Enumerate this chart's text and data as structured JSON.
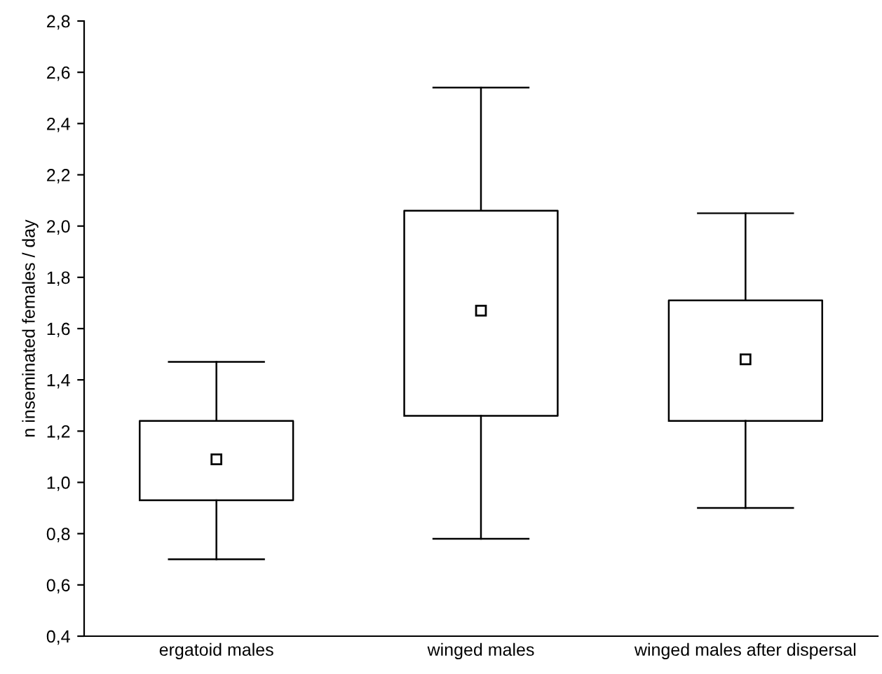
{
  "chart_data": {
    "type": "box",
    "ylabel": "n inseminated females / day",
    "categories": [
      "ergatoid males",
      "winged males",
      "winged males after dispersal"
    ],
    "boxes": [
      {
        "low": 0.7,
        "q1": 0.93,
        "q3": 1.24,
        "high": 1.47,
        "mean": 1.09
      },
      {
        "low": 0.78,
        "q1": 1.26,
        "q3": 2.06,
        "high": 2.54,
        "mean": 1.67
      },
      {
        "low": 0.9,
        "q1": 1.24,
        "q3": 1.71,
        "high": 2.05,
        "mean": 1.48
      }
    ],
    "color": "#000000",
    "marker": "square",
    "grid": false,
    "legend": false,
    "ylim": [
      0.4,
      2.8
    ],
    "yticks": [
      {
        "value": 0.4,
        "label": "0,4"
      },
      {
        "value": 0.6,
        "label": "0,6"
      },
      {
        "value": 0.8,
        "label": "0,8"
      },
      {
        "value": 1.0,
        "label": "1,0"
      },
      {
        "value": 1.2,
        "label": "1,2"
      },
      {
        "value": 1.4,
        "label": "1,4"
      },
      {
        "value": 1.6,
        "label": "1,6"
      },
      {
        "value": 1.8,
        "label": "1,8"
      },
      {
        "value": 2.0,
        "label": "2,0"
      },
      {
        "value": 2.2,
        "label": "2,2"
      },
      {
        "value": 2.4,
        "label": "2,4"
      },
      {
        "value": 2.6,
        "label": "2,6"
      },
      {
        "value": 2.8,
        "label": "2,8"
      }
    ]
  }
}
